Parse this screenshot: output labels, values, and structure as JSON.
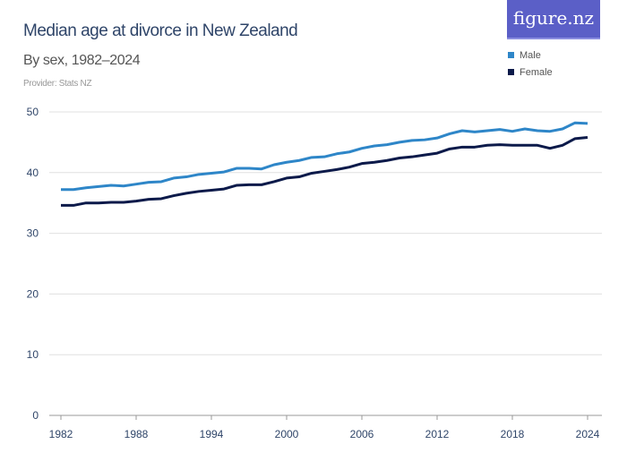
{
  "logo": "figure.nz",
  "chart_data": {
    "type": "line",
    "title": "Median age at divorce in New Zealand",
    "subtitle": "By sex, 1982–2024",
    "provider": "Provider: Stats NZ",
    "xlabel": "",
    "ylabel": "",
    "ylim": [
      0,
      50
    ],
    "xlim": [
      1982,
      2024
    ],
    "yticks": [
      0,
      10,
      20,
      30,
      40,
      50
    ],
    "xticks": [
      1982,
      1988,
      1994,
      2000,
      2006,
      2012,
      2018,
      2024
    ],
    "grid": true,
    "legend_placement": "top-right",
    "x": [
      1982,
      1983,
      1984,
      1985,
      1986,
      1987,
      1988,
      1989,
      1990,
      1991,
      1992,
      1993,
      1994,
      1995,
      1996,
      1997,
      1998,
      1999,
      2000,
      2001,
      2002,
      2003,
      2004,
      2005,
      2006,
      2007,
      2008,
      2009,
      2010,
      2011,
      2012,
      2013,
      2014,
      2015,
      2016,
      2017,
      2018,
      2019,
      2020,
      2021,
      2022,
      2023,
      2024
    ],
    "series": [
      {
        "name": "Male",
        "color": "#2e86c8",
        "values": [
          37.2,
          37.2,
          37.5,
          37.7,
          37.9,
          37.8,
          38.1,
          38.4,
          38.5,
          39.1,
          39.3,
          39.7,
          39.9,
          40.1,
          40.7,
          40.7,
          40.6,
          41.3,
          41.7,
          42.0,
          42.5,
          42.6,
          43.1,
          43.4,
          44.0,
          44.4,
          44.6,
          45.0,
          45.3,
          45.4,
          45.7,
          46.4,
          46.9,
          46.7,
          46.9,
          47.1,
          46.8,
          47.2,
          46.9,
          46.8,
          47.2,
          48.2,
          48.1
        ]
      },
      {
        "name": "Female",
        "color": "#0c1a4a",
        "values": [
          34.6,
          34.6,
          35.0,
          35.0,
          35.1,
          35.1,
          35.3,
          35.6,
          35.7,
          36.2,
          36.6,
          36.9,
          37.1,
          37.3,
          37.9,
          38.0,
          38.0,
          38.5,
          39.1,
          39.3,
          39.9,
          40.2,
          40.5,
          40.9,
          41.5,
          41.7,
          42.0,
          42.4,
          42.6,
          42.9,
          43.2,
          43.9,
          44.2,
          44.2,
          44.5,
          44.6,
          44.5,
          44.5,
          44.5,
          44.0,
          44.5,
          45.6,
          45.8
        ]
      }
    ]
  }
}
